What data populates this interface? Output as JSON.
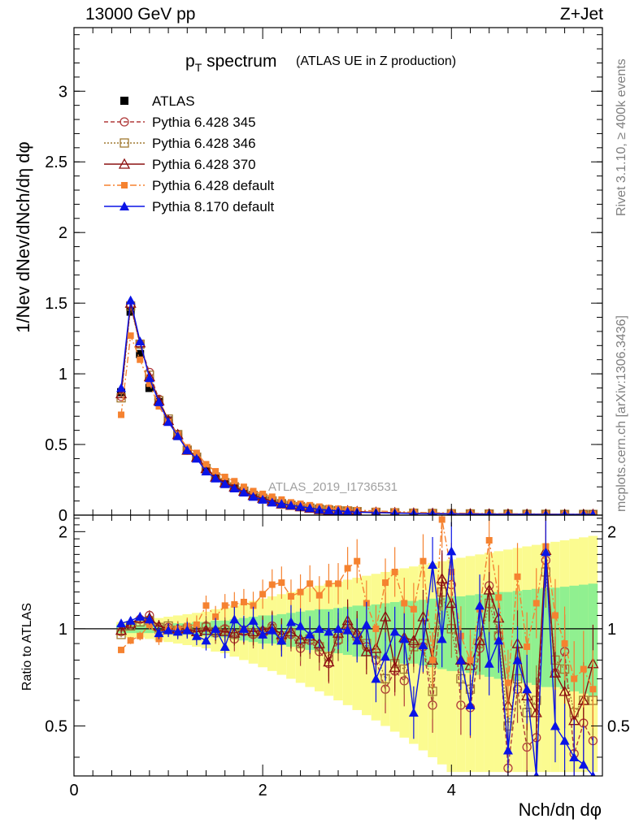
{
  "header": {
    "left": "13000 GeV pp",
    "right": "Z+Jet"
  },
  "side_labels": {
    "top": "Rivet 3.1.10, ≥ 400k events",
    "bottom": "mcplots.cern.ch [arXiv:1306.3436]"
  },
  "colors": {
    "atlas": "#000000",
    "p345": "#b03a3a",
    "p346": "#a07830",
    "p370": "#8b1010",
    "pdef6": "#f58230",
    "p8": "#0a14e6",
    "band_green": "#90f090",
    "band_yellow": "#fbfb90",
    "watermark": "#a0a0a0"
  },
  "chart_data": [
    {
      "type": "line",
      "title": "p_T spectrum",
      "title_suffix": "(ATLAS UE in Z production)",
      "watermark": "ATLAS_2019_I1736531",
      "xlabel": "",
      "ylabel": "1/N_ev dN_ev/dN_ch/dη dφ",
      "xlim": [
        0,
        5.6
      ],
      "ylim": [
        0,
        3.45
      ],
      "yticks": [
        0,
        0.5,
        1,
        1.5,
        2,
        2.5,
        3
      ],
      "ytick_labels": [
        "0",
        "0.5",
        "1",
        "1.5",
        "2",
        "2.5",
        "3"
      ],
      "legend_position": "top-left",
      "x": [
        0.5,
        0.6,
        0.7,
        0.8,
        0.9,
        1.0,
        1.1,
        1.2,
        1.3,
        1.4,
        1.5,
        1.6,
        1.7,
        1.8,
        1.9,
        2.0,
        2.1,
        2.2,
        2.3,
        2.4,
        2.5,
        2.6,
        2.7,
        2.8,
        2.9,
        3.0,
        3.2,
        3.4,
        3.6,
        3.8,
        4.0,
        4.2,
        4.4,
        4.6,
        4.8,
        5.0,
        5.2,
        5.4,
        5.5
      ],
      "series": [
        {
          "name": "ATLAS",
          "values": [
            0.87,
            1.44,
            1.14,
            0.9,
            0.8,
            0.67,
            0.56,
            0.46,
            0.41,
            0.32,
            0.27,
            0.23,
            0.2,
            0.17,
            0.14,
            0.12,
            0.1,
            0.085,
            0.072,
            0.062,
            0.053,
            0.046,
            0.04,
            0.035,
            0.031,
            0.028,
            0.022,
            0.018,
            0.015,
            0.013,
            0.011,
            0.01,
            0.009,
            0.008,
            0.007,
            0.007,
            0.006,
            0.006,
            0.006
          ]
        },
        {
          "name": "Pythia 6.428 345",
          "values": [
            0.84,
            1.49,
            1.21,
            1.01,
            0.82,
            0.67,
            0.57,
            0.46,
            0.42,
            0.33,
            0.27,
            0.23,
            0.2,
            0.17,
            0.14,
            0.12,
            0.1,
            0.08,
            0.07,
            0.06,
            0.05,
            0.04,
            0.035,
            0.03,
            0.03,
            0.025,
            0.02,
            0.017,
            0.014,
            0.012,
            0.01,
            0.009,
            0.008,
            0.007,
            0.006,
            0.006,
            0.005,
            0.005,
            0.005
          ]
        },
        {
          "name": "Pythia 6.428 346",
          "values": [
            0.83,
            1.48,
            1.21,
            0.99,
            0.81,
            0.68,
            0.57,
            0.46,
            0.41,
            0.33,
            0.27,
            0.23,
            0.2,
            0.17,
            0.14,
            0.12,
            0.1,
            0.08,
            0.07,
            0.06,
            0.05,
            0.04,
            0.035,
            0.03,
            0.03,
            0.025,
            0.02,
            0.017,
            0.014,
            0.012,
            0.01,
            0.009,
            0.008,
            0.007,
            0.006,
            0.006,
            0.005,
            0.005,
            0.005
          ]
        },
        {
          "name": "Pythia 6.428 370",
          "values": [
            0.86,
            1.5,
            1.22,
            0.98,
            0.81,
            0.67,
            0.57,
            0.46,
            0.41,
            0.33,
            0.27,
            0.23,
            0.2,
            0.17,
            0.14,
            0.12,
            0.1,
            0.08,
            0.07,
            0.06,
            0.05,
            0.04,
            0.035,
            0.03,
            0.03,
            0.025,
            0.02,
            0.017,
            0.014,
            0.012,
            0.01,
            0.009,
            0.008,
            0.007,
            0.006,
            0.006,
            0.005,
            0.005,
            0.005
          ]
        },
        {
          "name": "Pythia 6.428 default",
          "values": [
            0.71,
            1.27,
            1.1,
            0.93,
            0.77,
            0.66,
            0.57,
            0.48,
            0.44,
            0.36,
            0.31,
            0.27,
            0.24,
            0.2,
            0.17,
            0.15,
            0.13,
            0.11,
            0.09,
            0.08,
            0.07,
            0.06,
            0.05,
            0.045,
            0.04,
            0.035,
            0.03,
            0.025,
            0.02,
            0.017,
            0.015,
            0.013,
            0.011,
            0.01,
            0.009,
            0.008,
            0.007,
            0.007,
            0.006
          ]
        },
        {
          "name": "Pythia 8.170 default",
          "values": [
            0.9,
            1.52,
            1.23,
            0.97,
            0.8,
            0.66,
            0.56,
            0.46,
            0.4,
            0.31,
            0.26,
            0.22,
            0.19,
            0.16,
            0.13,
            0.11,
            0.09,
            0.08,
            0.07,
            0.06,
            0.05,
            0.04,
            0.035,
            0.03,
            0.025,
            0.02,
            0.017,
            0.014,
            0.012,
            0.01,
            0.009,
            0.008,
            0.007,
            0.006,
            0.006,
            0.005,
            0.005,
            0.005,
            0.005
          ]
        }
      ]
    },
    {
      "type": "line",
      "title": "",
      "xlabel": "N_ch/dη dφ",
      "ylabel": "Ratio to ATLAS",
      "xlim": [
        0,
        5.6
      ],
      "ylim": [
        0.35,
        2.25
      ],
      "xticks": [
        0,
        2,
        4
      ],
      "xtick_labels": [
        "0",
        "2",
        "4"
      ],
      "yticks": [
        0.5,
        1,
        2
      ],
      "ytick_labels": [
        "0.5",
        "1",
        "2"
      ],
      "x": [
        0.5,
        0.6,
        0.7,
        0.8,
        0.9,
        1.0,
        1.1,
        1.2,
        1.3,
        1.4,
        1.5,
        1.6,
        1.7,
        1.8,
        1.9,
        2.0,
        2.1,
        2.2,
        2.3,
        2.4,
        2.5,
        2.6,
        2.7,
        2.8,
        2.9,
        3.0,
        3.1,
        3.2,
        3.3,
        3.4,
        3.5,
        3.6,
        3.7,
        3.8,
        3.9,
        4.0,
        4.1,
        4.2,
        4.3,
        4.4,
        4.5,
        4.6,
        4.7,
        4.8,
        4.9,
        5.0,
        5.1,
        5.2,
        5.3,
        5.4,
        5.5
      ],
      "bands": {
        "green_half_width": [
          0.03,
          0.03,
          0.03,
          0.03,
          0.03,
          0.03,
          0.04,
          0.04,
          0.05,
          0.05,
          0.06,
          0.06,
          0.07,
          0.08,
          0.09,
          0.1,
          0.1,
          0.11,
          0.12,
          0.13,
          0.14,
          0.15,
          0.15,
          0.16,
          0.17,
          0.18,
          0.18,
          0.19,
          0.2,
          0.21,
          0.22,
          0.22,
          0.23,
          0.24,
          0.25,
          0.26,
          0.26,
          0.27,
          0.28,
          0.29,
          0.3,
          0.3,
          0.31,
          0.32,
          0.33,
          0.34,
          0.34,
          0.35,
          0.36,
          0.37,
          0.38
        ],
        "yellow_half_width": [
          0.05,
          0.06,
          0.06,
          0.07,
          0.08,
          0.09,
          0.1,
          0.11,
          0.12,
          0.13,
          0.15,
          0.16,
          0.18,
          0.2,
          0.22,
          0.24,
          0.26,
          0.28,
          0.3,
          0.32,
          0.34,
          0.36,
          0.38,
          0.4,
          0.42,
          0.44,
          0.46,
          0.48,
          0.5,
          0.52,
          0.54,
          0.56,
          0.58,
          0.6,
          0.62,
          0.64,
          0.66,
          0.68,
          0.7,
          0.72,
          0.74,
          0.76,
          0.78,
          0.8,
          0.82,
          0.84,
          0.86,
          0.88,
          0.9,
          0.92,
          0.94
        ]
      },
      "series": [
        {
          "name": "Pythia 6.428 345",
          "values": [
            0.98,
            1.03,
            1.07,
            1.1,
            1.0,
            1.01,
            0.99,
            1.01,
            0.97,
            1.02,
            0.97,
            1.0,
            0.93,
            0.98,
            0.96,
            0.97,
            1.02,
            0.92,
            0.96,
            0.87,
            0.92,
            0.85,
            0.78,
            0.92,
            1.03,
            0.94,
            0.88,
            0.8,
            0.65,
            0.74,
            0.69,
            0.9,
            0.88,
            0.58,
            1.4,
            1.37,
            0.58,
            0.57,
            0.87,
            1.36,
            0.95,
            0.37,
            0.65,
            0.43,
            0.46,
            1.63,
            0.73,
            0.85,
            0.41,
            0.51,
            0.45
          ]
        },
        {
          "name": "Pythia 6.428 346",
          "values": [
            0.96,
            1.02,
            1.05,
            1.06,
            1.01,
            1.02,
            0.99,
            1.0,
            0.98,
            1.01,
            0.98,
            0.99,
            0.96,
            0.99,
            0.97,
            0.98,
            1.0,
            0.95,
            0.97,
            0.9,
            0.93,
            0.88,
            0.82,
            0.93,
            1.0,
            0.95,
            0.9,
            0.84,
            0.7,
            0.78,
            0.75,
            0.88,
            0.9,
            0.64,
            1.3,
            1.0,
            0.7,
            0.65,
            0.9,
            1.2,
            0.95,
            0.5,
            0.7,
            0.55,
            0.6,
            1.5,
            0.8,
            0.75,
            0.55,
            0.6,
            0.6
          ]
        },
        {
          "name": "Pythia 6.428 370",
          "values": [
            0.99,
            1.04,
            1.08,
            1.08,
            1.02,
            1.0,
            1.0,
            1.0,
            0.98,
            0.99,
            0.99,
            0.98,
            0.97,
            0.99,
            0.98,
            0.99,
            1.01,
            0.96,
            0.98,
            0.93,
            0.95,
            0.9,
            0.79,
            0.97,
            1.06,
            0.97,
            0.85,
            0.87,
            1.09,
            0.76,
            0.94,
            0.92,
            1.09,
            0.8,
            1.43,
            1.2,
            0.8,
            0.77,
            0.92,
            1.32,
            1.08,
            0.58,
            0.9,
            0.62,
            0.55,
            1.75,
            0.73,
            0.64,
            0.52,
            0.6,
            0.78
          ]
        },
        {
          "name": "Pythia 6.428 default",
          "values": [
            0.86,
            0.92,
            0.95,
            1.03,
            0.93,
            1.0,
            1.0,
            1.02,
            1.03,
            1.18,
            1.09,
            1.18,
            1.19,
            1.21,
            1.18,
            1.28,
            1.37,
            1.39,
            1.26,
            1.3,
            1.38,
            1.27,
            1.38,
            1.38,
            1.54,
            1.62,
            1.2,
            1.0,
            1.39,
            1.5,
            1.2,
            1.15,
            1.62,
            0.8,
            2.18,
            1.5,
            0.95,
            0.8,
            1.15,
            1.88,
            1.25,
            0.68,
            1.45,
            0.88,
            1.2,
            1.8,
            1.1,
            0.9,
            0.7,
            0.75,
            0.65
          ]
        },
        {
          "name": "Pythia 8.170 default",
          "values": [
            1.04,
            1.06,
            1.09,
            1.07,
            0.97,
            0.99,
            0.98,
            0.99,
            0.95,
            0.92,
            1.0,
            0.88,
            1.07,
            1.0,
            1.06,
            0.96,
            0.99,
            0.92,
            1.05,
            1.02,
            0.96,
            1.0,
            0.98,
            1.0,
            0.99,
            0.92,
            1.03,
            0.7,
            0.82,
            0.98,
            0.93,
            0.55,
            0.89,
            1.58,
            0.93,
            1.74,
            0.8,
            0.58,
            1.18,
            0.78,
            0.92,
            0.42,
            0.8,
            0.65,
            0.35,
            1.73,
            0.5,
            0.45,
            0.4,
            0.38,
            0.35
          ]
        }
      ]
    }
  ]
}
